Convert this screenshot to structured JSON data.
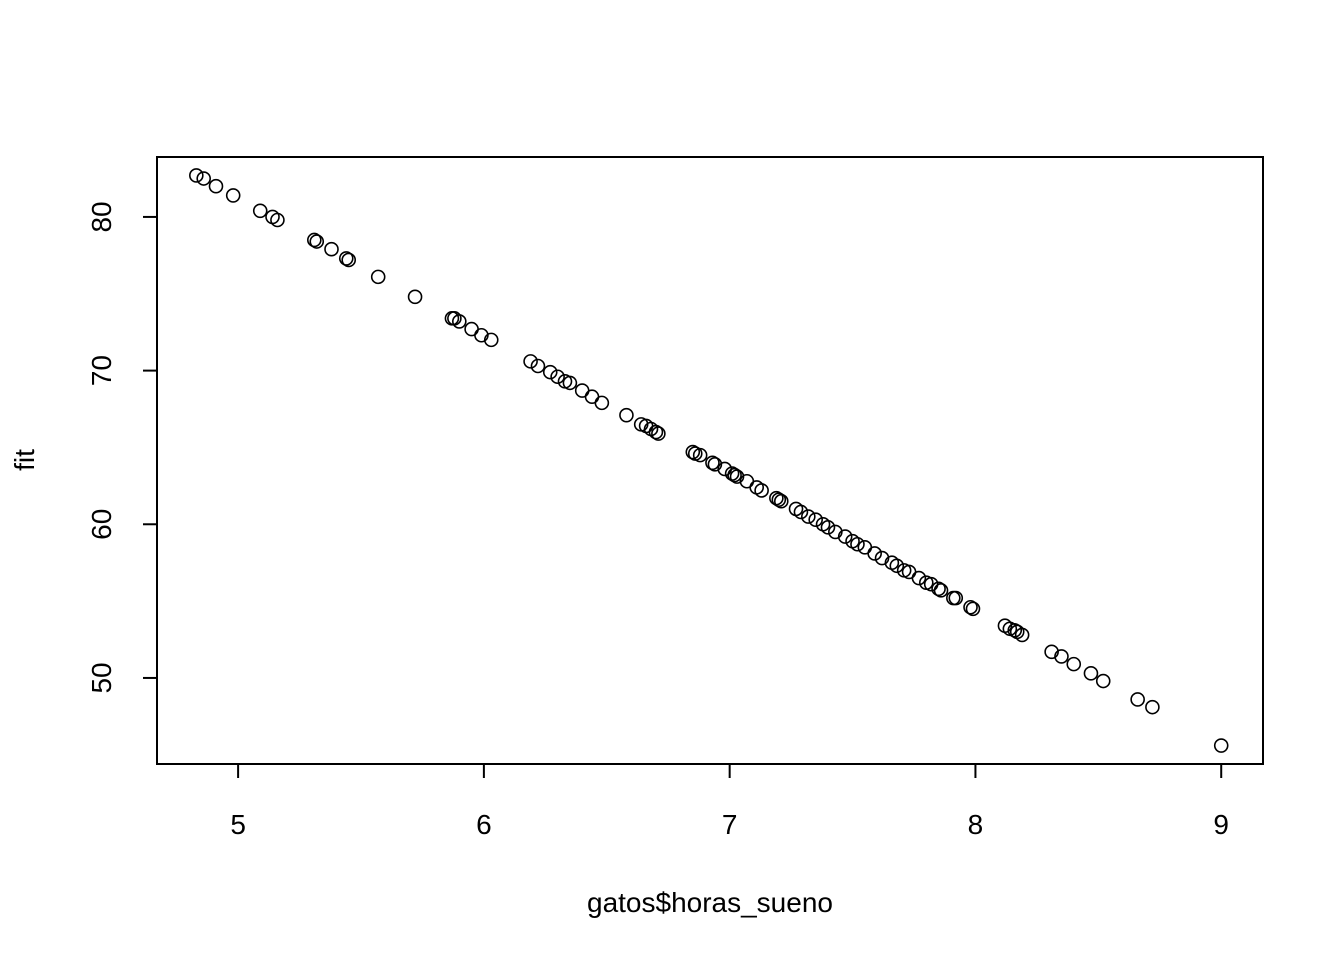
{
  "chart_data": {
    "type": "scatter",
    "title": "",
    "xlabel": "gatos$horas_sueno",
    "ylabel": "fit",
    "xlim": [
      4.67,
      9.17
    ],
    "ylim": [
      44.4,
      83.9
    ],
    "x_ticks": [
      5,
      6,
      7,
      8,
      9
    ],
    "y_ticks": [
      50,
      60,
      70,
      80
    ],
    "x_tick_labels": [
      "5",
      "6",
      "7",
      "8",
      "9"
    ],
    "y_tick_labels": [
      "50",
      "60",
      "70",
      "80"
    ],
    "grid": false,
    "legend": "none",
    "marker": "open-circle",
    "points": [
      [
        4.83,
        82.7
      ],
      [
        4.86,
        82.5
      ],
      [
        4.91,
        82.0
      ],
      [
        4.98,
        81.4
      ],
      [
        5.09,
        80.4
      ],
      [
        5.14,
        80.0
      ],
      [
        5.16,
        79.8
      ],
      [
        5.31,
        78.5
      ],
      [
        5.32,
        78.4
      ],
      [
        5.38,
        77.9
      ],
      [
        5.44,
        77.3
      ],
      [
        5.45,
        77.2
      ],
      [
        5.57,
        76.1
      ],
      [
        5.72,
        74.8
      ],
      [
        5.87,
        73.4
      ],
      [
        5.88,
        73.4
      ],
      [
        5.9,
        73.2
      ],
      [
        5.95,
        72.7
      ],
      [
        5.99,
        72.3
      ],
      [
        6.03,
        72.0
      ],
      [
        6.19,
        70.6
      ],
      [
        6.22,
        70.3
      ],
      [
        6.27,
        69.9
      ],
      [
        6.3,
        69.6
      ],
      [
        6.33,
        69.3
      ],
      [
        6.35,
        69.2
      ],
      [
        6.4,
        68.7
      ],
      [
        6.44,
        68.3
      ],
      [
        6.48,
        67.9
      ],
      [
        6.58,
        67.1
      ],
      [
        6.64,
        66.5
      ],
      [
        6.66,
        66.4
      ],
      [
        6.68,
        66.2
      ],
      [
        6.7,
        66.0
      ],
      [
        6.71,
        65.9
      ],
      [
        6.85,
        64.7
      ],
      [
        6.86,
        64.6
      ],
      [
        6.88,
        64.5
      ],
      [
        6.93,
        64.0
      ],
      [
        6.94,
        63.9
      ],
      [
        6.98,
        63.6
      ],
      [
        7.01,
        63.3
      ],
      [
        7.02,
        63.2
      ],
      [
        7.03,
        63.1
      ],
      [
        7.07,
        62.8
      ],
      [
        7.11,
        62.4
      ],
      [
        7.13,
        62.2
      ],
      [
        7.19,
        61.7
      ],
      [
        7.2,
        61.6
      ],
      [
        7.21,
        61.5
      ],
      [
        7.27,
        61.0
      ],
      [
        7.29,
        60.8
      ],
      [
        7.32,
        60.5
      ],
      [
        7.35,
        60.3
      ],
      [
        7.38,
        60.0
      ],
      [
        7.4,
        59.8
      ],
      [
        7.43,
        59.5
      ],
      [
        7.47,
        59.2
      ],
      [
        7.5,
        58.9
      ],
      [
        7.52,
        58.7
      ],
      [
        7.55,
        58.5
      ],
      [
        7.59,
        58.1
      ],
      [
        7.62,
        57.8
      ],
      [
        7.66,
        57.5
      ],
      [
        7.68,
        57.3
      ],
      [
        7.71,
        57.0
      ],
      [
        7.73,
        56.9
      ],
      [
        7.77,
        56.5
      ],
      [
        7.8,
        56.2
      ],
      [
        7.82,
        56.1
      ],
      [
        7.85,
        55.8
      ],
      [
        7.86,
        55.7
      ],
      [
        7.91,
        55.2
      ],
      [
        7.92,
        55.2
      ],
      [
        7.98,
        54.6
      ],
      [
        7.99,
        54.5
      ],
      [
        8.12,
        53.4
      ],
      [
        8.14,
        53.2
      ],
      [
        8.16,
        53.1
      ],
      [
        8.17,
        53.0
      ],
      [
        8.19,
        52.8
      ],
      [
        8.31,
        51.7
      ],
      [
        8.35,
        51.4
      ],
      [
        8.4,
        50.9
      ],
      [
        8.47,
        50.3
      ],
      [
        8.52,
        49.8
      ],
      [
        8.66,
        48.6
      ],
      [
        8.72,
        48.1
      ],
      [
        9.0,
        45.6
      ]
    ]
  }
}
